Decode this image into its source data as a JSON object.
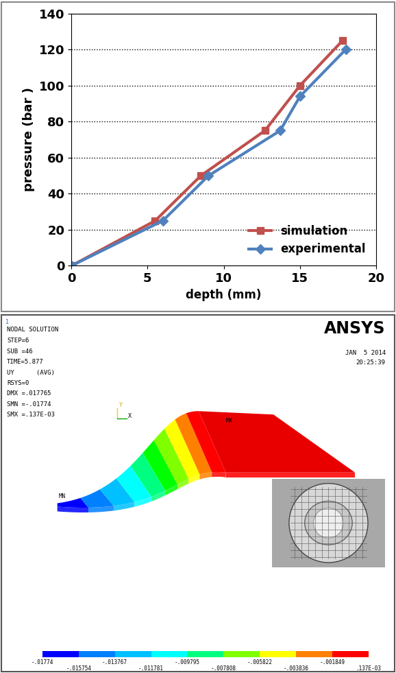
{
  "chart_data": {
    "type": "line",
    "x_label": "depth (mm)",
    "y_label": "pressure (bar )",
    "xlim": [
      0,
      20
    ],
    "xticks": [
      0,
      5,
      10,
      15,
      20
    ],
    "ylim": [
      0,
      140
    ],
    "yticks": [
      0,
      20,
      40,
      60,
      80,
      100,
      120,
      140
    ],
    "grid": "y",
    "legend": "lower right",
    "series": [
      {
        "name": "simulation",
        "color": "#C0504D",
        "marker": "square",
        "x": [
          0,
          5.5,
          8.5,
          12.7,
          15,
          17.8
        ],
        "values": [
          0,
          25,
          50,
          75,
          100,
          125
        ]
      },
      {
        "name": "experimental",
        "color": "#4F81BD",
        "marker": "diamond",
        "x": [
          0,
          6,
          9,
          13.7,
          15,
          18
        ],
        "values": [
          0,
          25,
          50,
          75,
          94,
          120
        ]
      }
    ]
  },
  "contour_plot": {
    "index_label": "1",
    "title": "NODAL SOLUTION",
    "info": [
      "STEP=6",
      "SUB =46",
      "TIME=5.877",
      "UY      (AVG)",
      "RSYS=0",
      "DMX =.017765",
      "SMN =-.01774",
      "SMX =.137E-03"
    ],
    "logo": "ANSYS",
    "date": "JAN  5 2014",
    "time": "20:25:39",
    "min_label": "MN",
    "max_label": "MX",
    "axis_labels": [
      "Y",
      "X"
    ],
    "colorbar_labels": [
      "-.01774",
      "-.015754",
      "-.013767",
      "-.011781",
      "-.009795",
      "-.007808",
      "-.005822",
      "-.003836",
      "-.001849",
      ".137E-03"
    ]
  }
}
